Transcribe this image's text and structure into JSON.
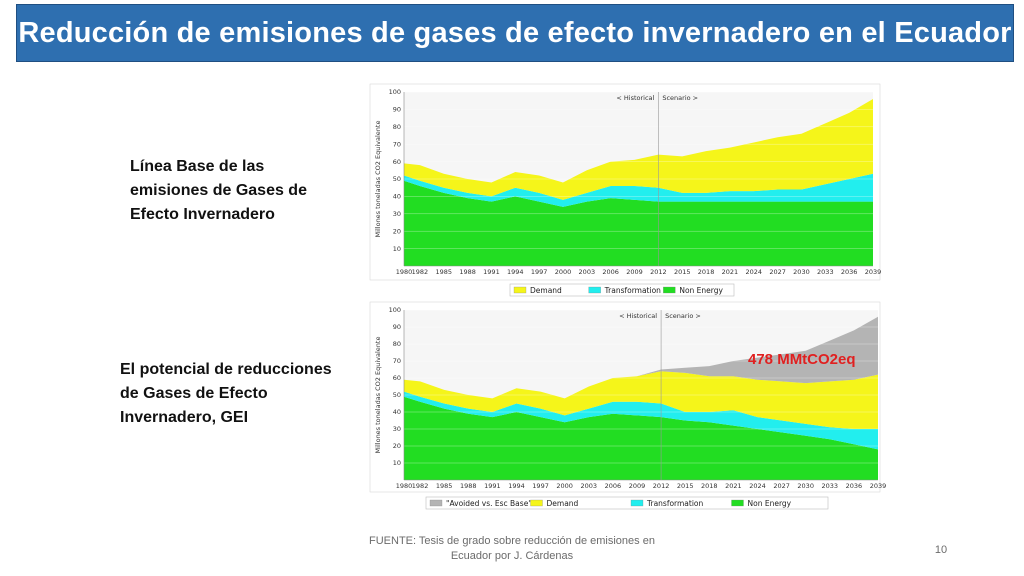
{
  "slide": {
    "title": "Reducción de emisiones de gases de efecto invernadero en el Ecuador",
    "label_top": "Línea Base de las emisiones de Gases de Efecto Invernadero",
    "label_bottom": "El potencial de reducciones de Gases de Efecto Invernadero, GEI",
    "footer": "FUENTE: Tesis de grado sobre reducción de emisiones en Ecuador por J. Cárdenas",
    "page_number": "10",
    "title_bg": "#2e6fb0"
  },
  "chart_data": [
    {
      "type": "area",
      "title": "",
      "ylabel": "Millones toneladas CO2 Equivalente",
      "ylim": [
        0,
        100
      ],
      "yticks": [
        10,
        20,
        30,
        40,
        50,
        60,
        70,
        80,
        90,
        100
      ],
      "x_tick_labels": [
        "1980",
        "1982",
        "1985",
        "1988",
        "1991",
        "1994",
        "1997",
        "2000",
        "2003",
        "2006",
        "2009",
        "2012",
        "2015",
        "2018",
        "2021",
        "2024",
        "2027",
        "2030",
        "2033",
        "2036",
        "2039"
      ],
      "period_labels": [
        "< Historical",
        "Scenario >"
      ],
      "divider_year": 2012,
      "x": [
        1980,
        1982,
        1985,
        1988,
        1991,
        1994,
        1997,
        2000,
        2003,
        2006,
        2009,
        2012,
        2015,
        2018,
        2021,
        2024,
        2027,
        2030,
        2033,
        2036,
        2039
      ],
      "stacked": true,
      "series": [
        {
          "name": "Non Energy",
          "color": "#22dd22",
          "values": [
            49,
            46,
            42,
            39,
            37,
            40,
            37,
            34,
            37,
            39,
            38,
            37,
            37,
            37,
            37,
            37,
            37,
            37,
            37,
            37,
            37
          ]
        },
        {
          "name": "Transformation",
          "color": "#22eeee",
          "values": [
            3,
            3,
            3,
            3,
            3,
            5,
            5,
            4,
            5,
            7,
            8,
            8,
            5,
            5,
            6,
            6,
            7,
            7,
            10,
            13,
            16
          ]
        },
        {
          "name": "Demand",
          "color": "#f5f51a",
          "values": [
            7,
            9,
            8,
            8,
            8,
            9,
            10,
            10,
            13,
            14,
            15,
            19,
            21,
            24,
            25,
            28,
            30,
            32,
            35,
            38,
            43
          ]
        }
      ],
      "legend": [
        "Demand",
        "Transformation",
        "Non Energy"
      ],
      "legend_position": "bottom"
    },
    {
      "type": "area",
      "title": "",
      "ylabel": "Millones toneladas CO2 Equivalente",
      "ylim": [
        0,
        100
      ],
      "yticks": [
        10,
        20,
        30,
        40,
        50,
        60,
        70,
        80,
        90,
        100
      ],
      "x_tick_labels": [
        "1980",
        "1982",
        "1985",
        "1988",
        "1991",
        "1994",
        "1997",
        "2000",
        "2003",
        "2006",
        "2009",
        "2012",
        "2015",
        "2018",
        "2021",
        "2024",
        "2027",
        "2030",
        "2033",
        "2036",
        "2039"
      ],
      "period_labels": [
        "< Historical",
        "Scenario >"
      ],
      "divider_year": 2012,
      "x": [
        1980,
        1982,
        1985,
        1988,
        1991,
        1994,
        1997,
        2000,
        2003,
        2006,
        2009,
        2012,
        2015,
        2018,
        2021,
        2024,
        2027,
        2030,
        2033,
        2036,
        2039
      ],
      "stacked": true,
      "series": [
        {
          "name": "Non Energy",
          "color": "#22dd22",
          "values": [
            49,
            46,
            42,
            39,
            37,
            40,
            37,
            34,
            37,
            39,
            38,
            37,
            35,
            34,
            32,
            30,
            28,
            26,
            24,
            21,
            18
          ]
        },
        {
          "name": "Transformation",
          "color": "#22eeee",
          "values": [
            3,
            3,
            3,
            3,
            3,
            5,
            5,
            4,
            5,
            7,
            8,
            8,
            5,
            6,
            9,
            7,
            7,
            7,
            7,
            9,
            12
          ]
        },
        {
          "name": "Demand",
          "color": "#f5f51a",
          "values": [
            7,
            9,
            8,
            8,
            8,
            9,
            10,
            10,
            13,
            14,
            15,
            19,
            23,
            21,
            20,
            22,
            23,
            24,
            27,
            29,
            32
          ]
        },
        {
          "name": "\"Avoided vs. Esc Base\"",
          "color": "#b4b4b4",
          "values": [
            0,
            0,
            0,
            0,
            0,
            0,
            0,
            0,
            0,
            0,
            0,
            1,
            3,
            6,
            9,
            13,
            16,
            19,
            24,
            29,
            34
          ]
        }
      ],
      "legend": [
        "\"Avoided vs. Esc Base\"",
        "Demand",
        "Transformation",
        "Non Energy"
      ],
      "legend_position": "bottom",
      "annotation": {
        "text": "478 MMtCO2eq",
        "color": "#e02020"
      }
    }
  ]
}
